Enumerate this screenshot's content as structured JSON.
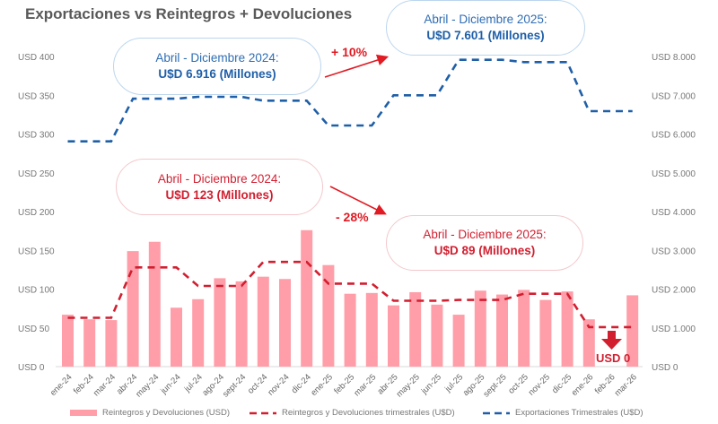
{
  "chart_data": {
    "type": "bar+line",
    "title": "Exportaciones vs Reintegros + Devoluciones",
    "categories": [
      "ene-24",
      "feb-24",
      "mar-24",
      "abr-24",
      "may-24",
      "jun-24",
      "jul-24",
      "ago-24",
      "sept-24",
      "oct-24",
      "nov-24",
      "dic-24",
      "ene-25",
      "feb-25",
      "mar-25",
      "abr-25",
      "may-25",
      "jun-25",
      "jul-25",
      "ago-25",
      "sept-25",
      "oct-25",
      "nov-25",
      "dic-25",
      "ene-26",
      "feb-26",
      "mar-26"
    ],
    "left_axis": {
      "range": [
        0,
        400
      ],
      "ticks": [
        "USD 0",
        "USD 50",
        "USD 100",
        "USD 150",
        "USD 200",
        "USD 250",
        "USD 300",
        "USD 350",
        "USD 400"
      ]
    },
    "right_axis": {
      "range": [
        0,
        8000
      ],
      "ticks": [
        "USD 0",
        "USD 1.000",
        "USD 2.000",
        "USD 3.000",
        "USD 4.000",
        "USD 5.000",
        "USD 6.000",
        "USD 7.000",
        "USD 8.000"
      ]
    },
    "series": [
      {
        "name": "Reintegros y Devoluciones (USD)",
        "type": "bar",
        "axis": "left",
        "color": "#ff9ea8",
        "values": [
          67,
          61,
          60,
          149,
          161,
          76,
          87,
          114,
          110,
          116,
          113,
          176,
          131,
          94,
          95,
          79,
          96,
          80,
          67,
          98,
          93,
          99,
          86,
          97,
          61,
          0,
          92
        ]
      },
      {
        "name": "Reintegros y Devoluciones trimestrales (U$D)",
        "type": "line",
        "style": "dashed",
        "axis": "left",
        "color": "#d11f30",
        "values": [
          63,
          63,
          63,
          128,
          128,
          128,
          104,
          104,
          104,
          135,
          135,
          135,
          107,
          107,
          107,
          85,
          85,
          85,
          86,
          86,
          86,
          94,
          94,
          94,
          51,
          51,
          51
        ]
      },
      {
        "name": "Exportaciones Trimestrales (U$D)",
        "type": "line",
        "style": "dashed",
        "axis": "right",
        "color": "#1f5fa8",
        "values": [
          5810,
          5810,
          5810,
          6910,
          6910,
          6910,
          6960,
          6960,
          6960,
          6860,
          6860,
          6860,
          6220,
          6220,
          6220,
          7000,
          7000,
          7000,
          7915,
          7915,
          7915,
          7855,
          7855,
          7855,
          6590,
          6590,
          6590
        ]
      }
    ],
    "legend_position": "bottom",
    "grid": false
  },
  "annotations": {
    "exp_2024_line1": "Abril - Diciembre 2024:",
    "exp_2024_line2": "U$D 6.916 (Millones)",
    "exp_2025_line1": "Abril - Diciembre 2025:",
    "exp_2025_line2": "U$D 7.601 (Millones)",
    "exp_change": "+ 10%",
    "rein_2024_line1": "Abril - Diciembre 2024:",
    "rein_2024_line2": "U$D 123 (Millones)",
    "rein_2025_line1": "Abril - Diciembre 2025:",
    "rein_2025_line2": "U$D 89 (Millones)",
    "rein_change": "- 28%",
    "zero_label": "USD 0"
  }
}
